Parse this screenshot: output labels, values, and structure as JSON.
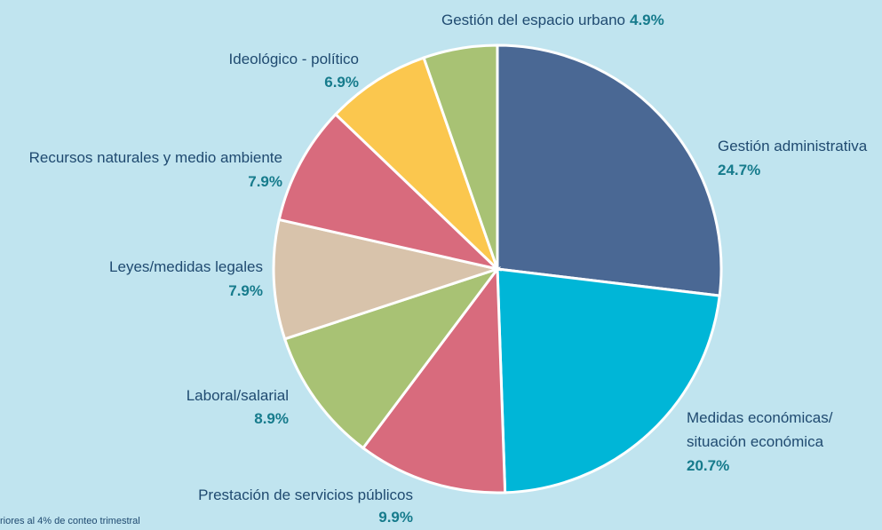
{
  "chart_data": {
    "type": "pie",
    "categories": [
      [
        "Gestión administrativa"
      ],
      [
        "Medidas económicas/",
        "situación económica"
      ],
      [
        "Prestación de servicios públicos"
      ],
      [
        "Laboral/salarial"
      ],
      [
        "Leyes/medidas legales"
      ],
      [
        "Recursos naturales y medio ambiente"
      ],
      [
        "Ideológico - político"
      ],
      [
        "Gestión del espacio urbano"
      ]
    ],
    "values": [
      24.7,
      20.7,
      9.9,
      8.9,
      7.9,
      7.9,
      6.9,
      4.9
    ],
    "value_labels": [
      "24.7%",
      "20.7%",
      "9.9%",
      "8.9%",
      "7.9%",
      "7.9%",
      "6.9%",
      "4.9%"
    ],
    "colors": [
      "#4a6894",
      "#00b6d7",
      "#d86b7d",
      "#a8c274",
      "#d8c3ab",
      "#d86b7d",
      "#fbc74e",
      "#a8c274"
    ],
    "note": "riores al 4% de conteo trimestral"
  }
}
